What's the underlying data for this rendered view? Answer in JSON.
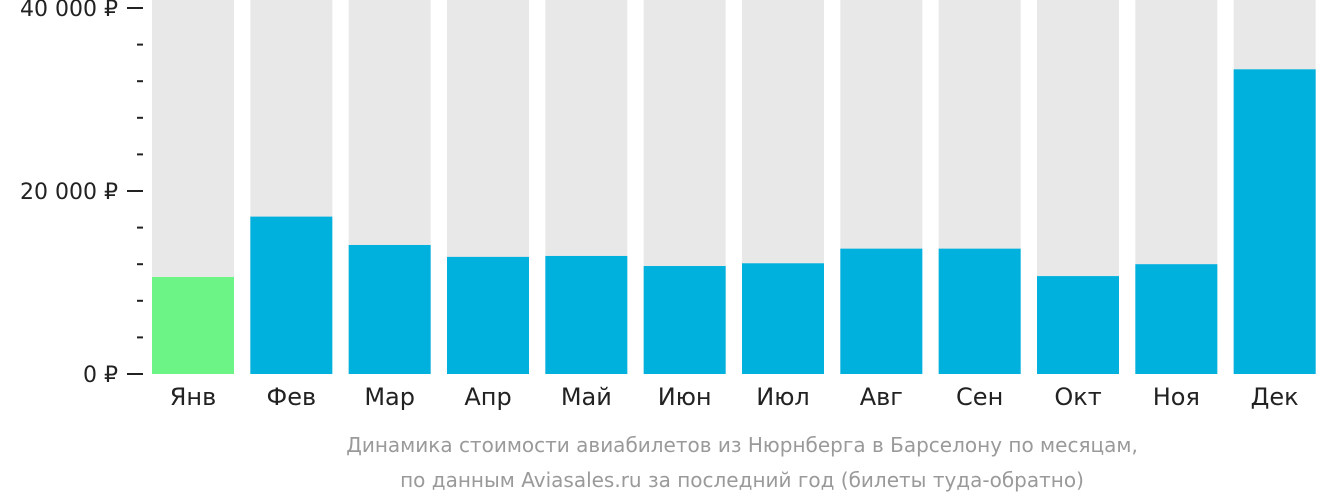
{
  "chart_data": {
    "type": "bar",
    "categories": [
      "Янв",
      "Фев",
      "Мар",
      "Апр",
      "Май",
      "Июн",
      "Июл",
      "Авг",
      "Сен",
      "Окт",
      "Ноя",
      "Дек"
    ],
    "values": [
      10600,
      17200,
      14100,
      12800,
      12900,
      11800,
      12100,
      13700,
      13700,
      10700,
      12000,
      33300
    ],
    "ylim": [
      0,
      40000
    ],
    "yticks": [
      {
        "value": 0,
        "label": "0 ₽"
      },
      {
        "value": 20000,
        "label": "20 000 ₽"
      },
      {
        "value": 40000,
        "label": "40 000 ₽"
      }
    ],
    "minor_tick_step": 4000,
    "highlight_index": 0,
    "colors": {
      "bar": "#00b0dd",
      "highlight": "#6cf586",
      "track": "#e8e8e8",
      "axis": "#222222"
    },
    "grid": false,
    "legend": "none"
  },
  "caption": {
    "line1": "Динамика стоимости авиабилетов из Нюрнберга в Барселону по месяцам,",
    "line2": "по данным Aviasales.ru за последний год (билеты туда-обратно)"
  }
}
